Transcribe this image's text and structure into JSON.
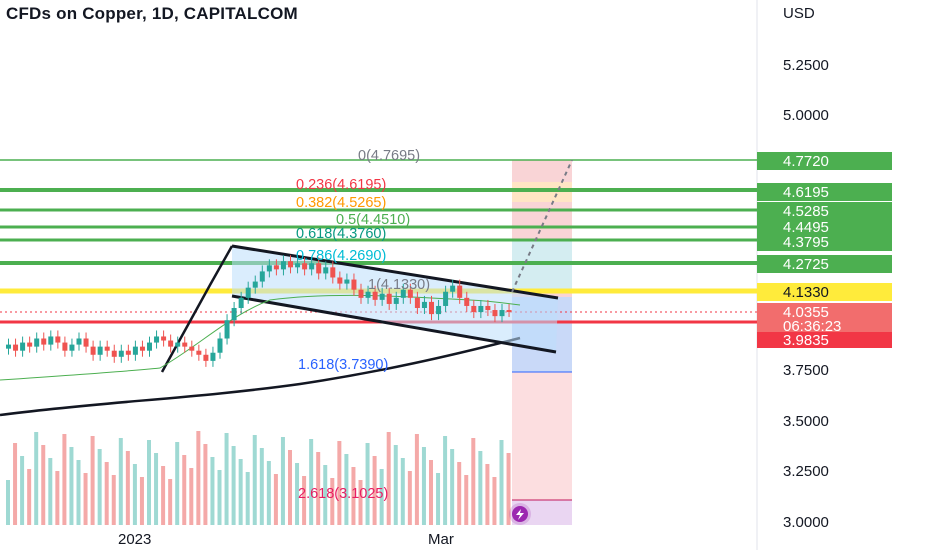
{
  "header": {
    "title": "CFDs on Copper, 1D, CAPITALCOM"
  },
  "axis": {
    "currency": "USD",
    "ticks": [
      "5.2500",
      "5.0000",
      "3.7500",
      "3.5000",
      "3.2500",
      "3.0000"
    ],
    "time_labels": [
      "2023",
      "Mar"
    ]
  },
  "price_tags": {
    "t4772": "4.7720",
    "t4619": "4.6195",
    "t4528": "4.5285",
    "t4449": "4.4495",
    "t4379": "4.3795",
    "t4272": "4.2725",
    "t4133": "4.1330",
    "current": "4.0355",
    "countdown": "06:36:23",
    "t3983": "3.9835"
  },
  "fib_labels": {
    "f0": "0(4.7695)",
    "f236": "0.236(4.6195)",
    "f382": "0.382(4.5265)",
    "f5": "0.5(4.4510)",
    "f618": "0.618(4.3760)",
    "f786": "0.786(4.2690)",
    "f1": "1(4.1330)",
    "f1618": "1.618(3.7390)",
    "f2618": "2.618(3.1025)"
  },
  "colors": {
    "up": "#26a69a",
    "down": "#ef5350",
    "green_line": "#4caf50",
    "yellow_line": "#ffeb3b",
    "red_line": "#f23645",
    "fib_gray": "#787b86",
    "fib_red": "#f23645",
    "fib_orange": "#ff9800",
    "fib_green": "#4caf50",
    "fib_teal": "#089981",
    "fib_cyan": "#00bcd4",
    "fib_blue": "#2962ff"
  },
  "chart_data": {
    "type": "candlestick",
    "symbol": "CFDs on Copper",
    "interval": "1D",
    "y_scale": "price (USD)",
    "ylim": [
      3.0,
      5.35
    ],
    "horizontal_levels": [
      4.772,
      4.6195,
      4.5285,
      4.4495,
      4.3795,
      4.2725,
      4.133,
      3.9835
    ],
    "fib_levels": [
      {
        "ratio": 0,
        "price": 4.7695
      },
      {
        "ratio": 0.236,
        "price": 4.6195
      },
      {
        "ratio": 0.382,
        "price": 4.5265
      },
      {
        "ratio": 0.5,
        "price": 4.451
      },
      {
        "ratio": 0.618,
        "price": 4.376
      },
      {
        "ratio": 0.786,
        "price": 4.269
      },
      {
        "ratio": 1,
        "price": 4.133
      },
      {
        "ratio": 1.618,
        "price": 3.739
      },
      {
        "ratio": 2.618,
        "price": 3.1025
      }
    ],
    "last_price": 4.0355,
    "candles": [
      {
        "o": 3.85,
        "c": 3.87
      },
      {
        "o": 3.87,
        "c": 3.84
      },
      {
        "o": 3.84,
        "c": 3.88
      },
      {
        "o": 3.88,
        "c": 3.86
      },
      {
        "o": 3.86,
        "c": 3.9
      },
      {
        "o": 3.9,
        "c": 3.87
      },
      {
        "o": 3.87,
        "c": 3.91
      },
      {
        "o": 3.91,
        "c": 3.88
      },
      {
        "o": 3.88,
        "c": 3.84
      },
      {
        "o": 3.84,
        "c": 3.87
      },
      {
        "o": 3.87,
        "c": 3.9
      },
      {
        "o": 3.9,
        "c": 3.86
      },
      {
        "o": 3.86,
        "c": 3.82
      },
      {
        "o": 3.82,
        "c": 3.86
      },
      {
        "o": 3.86,
        "c": 3.84
      },
      {
        "o": 3.84,
        "c": 3.81
      },
      {
        "o": 3.81,
        "c": 3.84
      },
      {
        "o": 3.84,
        "c": 3.82
      },
      {
        "o": 3.82,
        "c": 3.86
      },
      {
        "o": 3.86,
        "c": 3.84
      },
      {
        "o": 3.84,
        "c": 3.88
      },
      {
        "o": 3.88,
        "c": 3.91
      },
      {
        "o": 3.91,
        "c": 3.89
      },
      {
        "o": 3.89,
        "c": 3.86
      },
      {
        "o": 3.86,
        "c": 3.88
      },
      {
        "o": 3.88,
        "c": 3.86
      },
      {
        "o": 3.86,
        "c": 3.84
      },
      {
        "o": 3.84,
        "c": 3.82
      },
      {
        "o": 3.82,
        "c": 3.79
      },
      {
        "o": 3.79,
        "c": 3.83
      },
      {
        "o": 3.83,
        "c": 3.9
      },
      {
        "o": 3.9,
        "c": 3.99
      },
      {
        "o": 3.99,
        "c": 4.05
      },
      {
        "o": 4.05,
        "c": 4.1
      },
      {
        "o": 4.1,
        "c": 4.15
      },
      {
        "o": 4.15,
        "c": 4.18
      },
      {
        "o": 4.18,
        "c": 4.23
      },
      {
        "o": 4.23,
        "c": 4.26
      },
      {
        "o": 4.26,
        "c": 4.24
      },
      {
        "o": 4.24,
        "c": 4.28
      },
      {
        "o": 4.28,
        "c": 4.25
      },
      {
        "o": 4.25,
        "c": 4.27
      },
      {
        "o": 4.27,
        "c": 4.24
      },
      {
        "o": 4.24,
        "c": 4.27
      },
      {
        "o": 4.27,
        "c": 4.22
      },
      {
        "o": 4.22,
        "c": 4.25
      },
      {
        "o": 4.25,
        "c": 4.2
      },
      {
        "o": 4.2,
        "c": 4.17
      },
      {
        "o": 4.17,
        "c": 4.19
      },
      {
        "o": 4.19,
        "c": 4.14
      },
      {
        "o": 4.14,
        "c": 4.1
      },
      {
        "o": 4.1,
        "c": 4.13
      },
      {
        "o": 4.13,
        "c": 4.09
      },
      {
        "o": 4.09,
        "c": 4.12
      },
      {
        "o": 4.12,
        "c": 4.07
      },
      {
        "o": 4.07,
        "c": 4.1
      },
      {
        "o": 4.1,
        "c": 4.14
      },
      {
        "o": 4.14,
        "c": 4.1
      },
      {
        "o": 4.1,
        "c": 4.05
      },
      {
        "o": 4.05,
        "c": 4.08
      },
      {
        "o": 4.08,
        "c": 4.02
      },
      {
        "o": 4.02,
        "c": 4.06
      },
      {
        "o": 4.06,
        "c": 4.13
      },
      {
        "o": 4.13,
        "c": 4.16
      },
      {
        "o": 4.16,
        "c": 4.1
      },
      {
        "o": 4.1,
        "c": 4.06
      },
      {
        "o": 4.06,
        "c": 4.03
      },
      {
        "o": 4.03,
        "c": 4.06
      },
      {
        "o": 4.06,
        "c": 4.04
      },
      {
        "o": 4.04,
        "c": 4.01
      },
      {
        "o": 4.01,
        "c": 4.04
      },
      {
        "o": 4.04,
        "c": 4.0355
      }
    ]
  }
}
